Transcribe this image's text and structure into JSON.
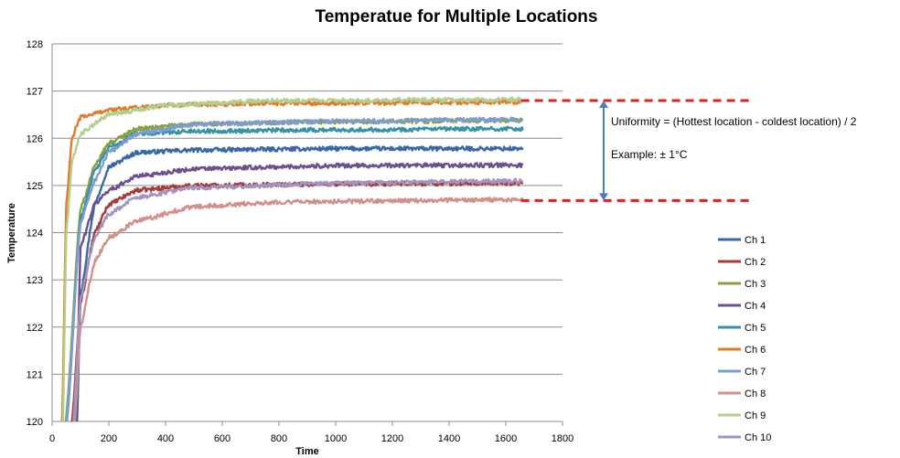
{
  "chart_data": {
    "type": "line",
    "title": "Temperatue for Multiple Locations",
    "xlabel": "Time",
    "ylabel": "Temperature",
    "xlim": [
      0,
      1800
    ],
    "ylim": [
      120,
      128
    ],
    "x_ticks": [
      0,
      200,
      400,
      600,
      800,
      1000,
      1200,
      1400,
      1600,
      1800
    ],
    "y_ticks": [
      120,
      121,
      122,
      123,
      124,
      125,
      126,
      127,
      128
    ],
    "grid": "horizontal",
    "legend_position": "right",
    "x_end": 1660,
    "series": [
      {
        "name": "Ch 1",
        "color": "#3A67A8",
        "start": [
          88,
          120
        ],
        "points": [
          [
            100,
            122.7
          ],
          [
            150,
            124.6
          ],
          [
            200,
            125.4
          ],
          [
            300,
            125.7
          ],
          [
            500,
            125.75
          ],
          [
            1000,
            125.78
          ],
          [
            1660,
            125.78
          ]
        ]
      },
      {
        "name": "Ch 2",
        "color": "#A83A38",
        "start": [
          70,
          120
        ],
        "points": [
          [
            100,
            122.5
          ],
          [
            150,
            124.0
          ],
          [
            200,
            124.6
          ],
          [
            300,
            124.9
          ],
          [
            500,
            125.0
          ],
          [
            1000,
            125.03
          ],
          [
            1660,
            125.05
          ]
        ]
      },
      {
        "name": "Ch 3",
        "color": "#87A13F",
        "start": [
          48,
          120
        ],
        "points": [
          [
            100,
            124.5
          ],
          [
            150,
            125.4
          ],
          [
            200,
            125.9
          ],
          [
            300,
            126.2
          ],
          [
            500,
            126.3
          ],
          [
            1000,
            126.35
          ],
          [
            1660,
            126.38
          ]
        ]
      },
      {
        "name": "Ch 4",
        "color": "#6B4F8F",
        "start": [
          85,
          120
        ],
        "points": [
          [
            100,
            123.7
          ],
          [
            150,
            124.6
          ],
          [
            200,
            124.9
          ],
          [
            300,
            125.2
          ],
          [
            500,
            125.35
          ],
          [
            1000,
            125.42
          ],
          [
            1660,
            125.43
          ]
        ]
      },
      {
        "name": "Ch 5",
        "color": "#3792A6",
        "start": [
          52,
          120
        ],
        "points": [
          [
            100,
            124.3
          ],
          [
            150,
            125.3
          ],
          [
            200,
            125.8
          ],
          [
            300,
            126.1
          ],
          [
            500,
            126.15
          ],
          [
            1000,
            126.18
          ],
          [
            1660,
            126.2
          ]
        ]
      },
      {
        "name": "Ch 6",
        "color": "#E07D2A",
        "start": [
          35,
          120
        ],
        "points": [
          [
            50,
            124.6
          ],
          [
            70,
            126.0
          ],
          [
            100,
            126.45
          ],
          [
            200,
            126.6
          ],
          [
            400,
            126.7
          ],
          [
            800,
            126.74
          ],
          [
            1660,
            126.77
          ]
        ]
      },
      {
        "name": "Ch 7",
        "color": "#7F9CD1",
        "start": [
          50,
          120
        ],
        "points": [
          [
            100,
            124.2
          ],
          [
            150,
            125.1
          ],
          [
            200,
            125.7
          ],
          [
            300,
            126.1
          ],
          [
            500,
            126.3
          ],
          [
            1000,
            126.36
          ],
          [
            1660,
            126.4
          ]
        ]
      },
      {
        "name": "Ch 8",
        "color": "#D38F8C",
        "start": [
          80,
          120
        ],
        "points": [
          [
            100,
            122.0
          ],
          [
            150,
            123.4
          ],
          [
            200,
            123.9
          ],
          [
            300,
            124.25
          ],
          [
            500,
            124.55
          ],
          [
            800,
            124.65
          ],
          [
            1660,
            124.7
          ]
        ]
      },
      {
        "name": "Ch 9",
        "color": "#B2CF8F",
        "start": [
          38,
          120
        ],
        "points": [
          [
            50,
            124.0
          ],
          [
            70,
            125.5
          ],
          [
            100,
            126.1
          ],
          [
            200,
            126.5
          ],
          [
            400,
            126.7
          ],
          [
            800,
            126.8
          ],
          [
            1660,
            126.82
          ]
        ]
      },
      {
        "name": "Ch 10",
        "color": "#A393BF",
        "start": [
          75,
          120
        ],
        "points": [
          [
            100,
            122.6
          ],
          [
            150,
            123.9
          ],
          [
            200,
            124.4
          ],
          [
            300,
            124.75
          ],
          [
            500,
            124.95
          ],
          [
            1000,
            125.05
          ],
          [
            1660,
            125.1
          ]
        ]
      }
    ],
    "annotation": {
      "line1": "Uniformity = (Hottest location - coldest location) / 2",
      "line2": "Example: ± 1°C",
      "top_value": 126.8,
      "bottom_value": 124.68,
      "dash_color": "#E02020",
      "arrow_color": "#4A7EC0"
    }
  }
}
